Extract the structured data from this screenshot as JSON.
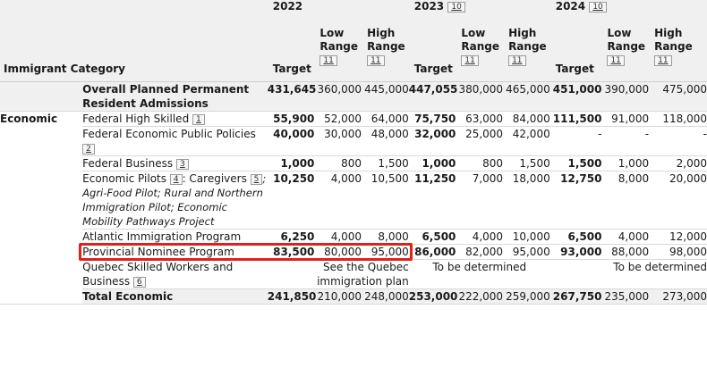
{
  "table": {
    "category_header": "Immigrant Category",
    "years": [
      {
        "label": "2022",
        "footnote": ""
      },
      {
        "label": "2023",
        "footnote": "10"
      },
      {
        "label": "2024",
        "footnote": "10"
      }
    ],
    "col_target": "Target",
    "col_low_line1": "Low",
    "col_low_line2": "Range",
    "col_high_line1": "High",
    "col_high_line2": "Range",
    "range_footnote": "11",
    "overall": {
      "label": "Overall Planned Permanent Resident Admissions",
      "values": [
        "431,645",
        "360,000",
        "445,000",
        "447,055",
        "380,000",
        "465,000",
        "451,000",
        "390,000",
        "475,000"
      ]
    },
    "category": "Economic",
    "rows": [
      {
        "label": "Federal High Skilled",
        "footnote": "1",
        "values": [
          "55,900",
          "52,000",
          "64,000",
          "75,750",
          "63,000",
          "84,000",
          "111,500",
          "91,000",
          "118,000"
        ]
      },
      {
        "label": "Federal Economic Public Policies",
        "footnote": "2",
        "values": [
          "40,000",
          "30,000",
          "48,000",
          "32,000",
          "25,000",
          "42,000",
          "-",
          "-",
          "-"
        ]
      },
      {
        "label": "Federal Business",
        "footnote": "3",
        "values": [
          "1,000",
          "800",
          "1,500",
          "1,000",
          "800",
          "1,500",
          "1,500",
          "1,000",
          "2,000"
        ]
      },
      {
        "label": "Economic Pilots",
        "footnote": "4",
        "label_suffix": ": Caregivers",
        "footnote2": "5",
        "italic": "; Agri-Food Pilot; Rural and Northern Immigration Pilot; Economic Mobility Pathways Project",
        "values": [
          "10,250",
          "4,000",
          "10,500",
          "11,250",
          "7,000",
          "18,000",
          "12,750",
          "8,000",
          "20,000"
        ]
      },
      {
        "label": "Atlantic Immigration Program",
        "footnote": "",
        "values": [
          "6,250",
          "4,000",
          "8,000",
          "6,500",
          "4,000",
          "10,000",
          "6,500",
          "4,000",
          "12,000"
        ]
      },
      {
        "label": "Provincial Nominee Program",
        "footnote": "",
        "values": [
          "83,500",
          "80,000",
          "95,000",
          "86,000",
          "82,000",
          "95,000",
          "93,000",
          "88,000",
          "98,000"
        ]
      }
    ],
    "quebec": {
      "label": "Quebec Skilled Workers and Business",
      "footnote": "6",
      "y2022": "See the Quebec immigration plan",
      "y2023": "To be determined",
      "y2024": "To be determined"
    },
    "total": {
      "label": "Total Economic",
      "values": [
        "241,850",
        "210,000",
        "248,000",
        "253,000",
        "222,000",
        "259,000",
        "267,750",
        "235,000",
        "273,000"
      ]
    }
  }
}
